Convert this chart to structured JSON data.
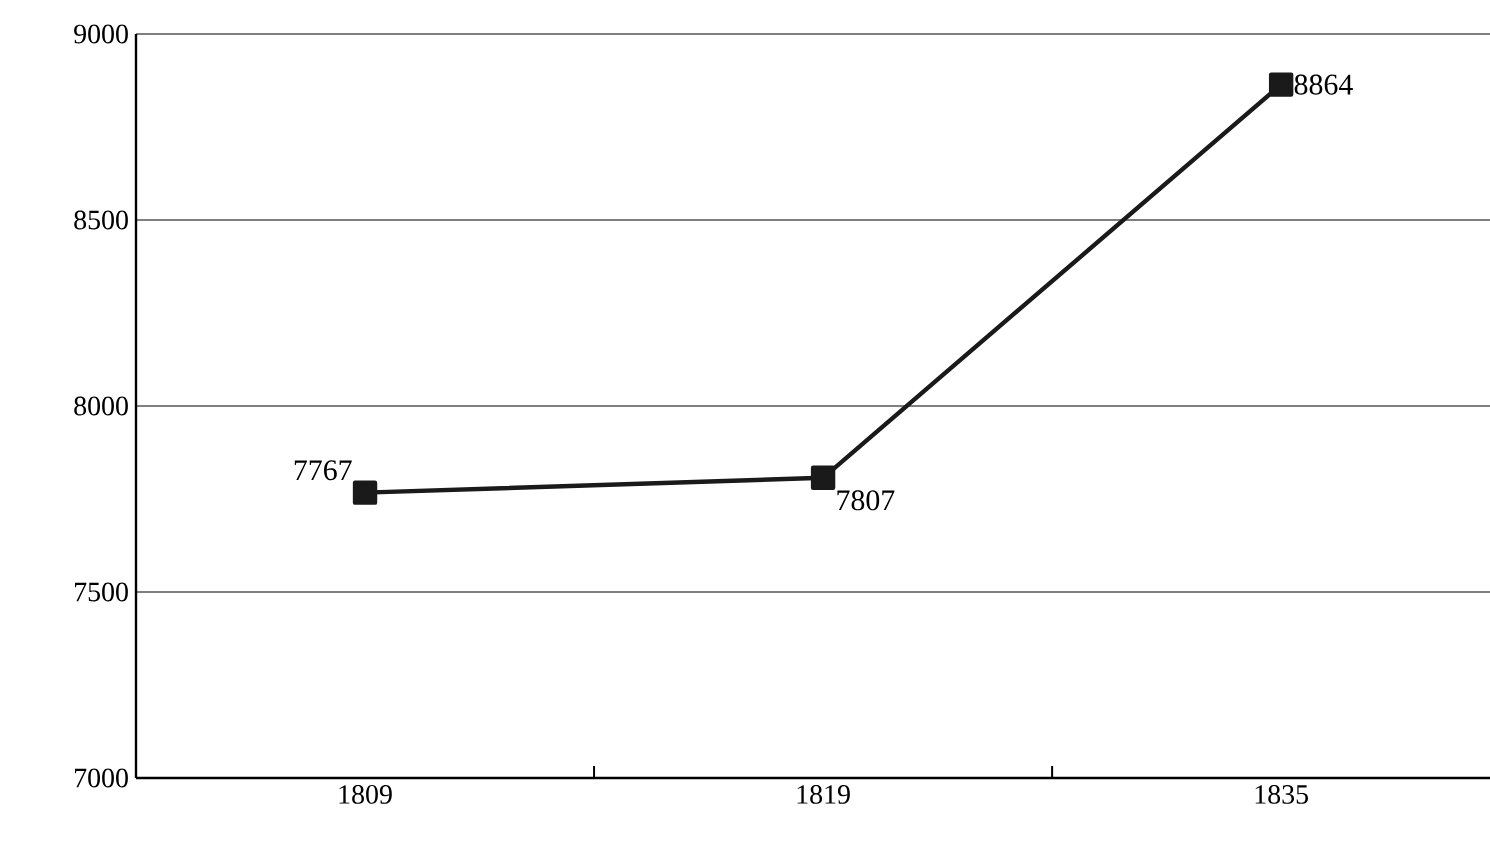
{
  "chart_data": {
    "type": "line",
    "categories": [
      "1809",
      "1819",
      "1835"
    ],
    "series": [
      {
        "color": "#1a1a1a",
        "values": [
          7767,
          7807,
          8864
        ]
      }
    ],
    "ylim": [
      7000,
      9000
    ],
    "yticks": [
      7000,
      7500,
      8000,
      8500,
      9000
    ],
    "grid": "y",
    "marker": "square",
    "line_style": "solid",
    "data_labels": true
  }
}
